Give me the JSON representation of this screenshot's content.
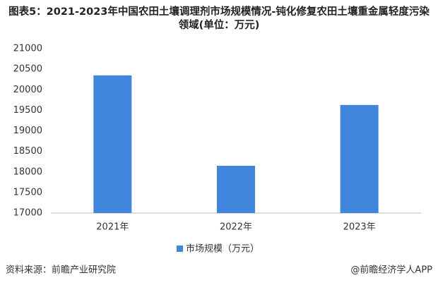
{
  "chart_data": {
    "type": "bar",
    "title": "图表5：2021-2023年中国农田土壤调理剂市场规模情况-钝化修复农田土壤重金属轻度污染领域(单位：万元)",
    "categories": [
      "2021年",
      "2022年",
      "2023年"
    ],
    "series": [
      {
        "name": "市场规模（万元）",
        "color": "#3f86dc",
        "values": [
          20350,
          18150,
          19630
        ]
      }
    ],
    "ylim": [
      17000,
      21000
    ],
    "yticks": [
      17000,
      17500,
      18000,
      18500,
      19000,
      19500,
      20000,
      20500,
      21000
    ],
    "grid": false,
    "legend": "bottom",
    "source": "资料来源：前瞻产业研究院",
    "credit": "@前瞻经济学人APP"
  }
}
